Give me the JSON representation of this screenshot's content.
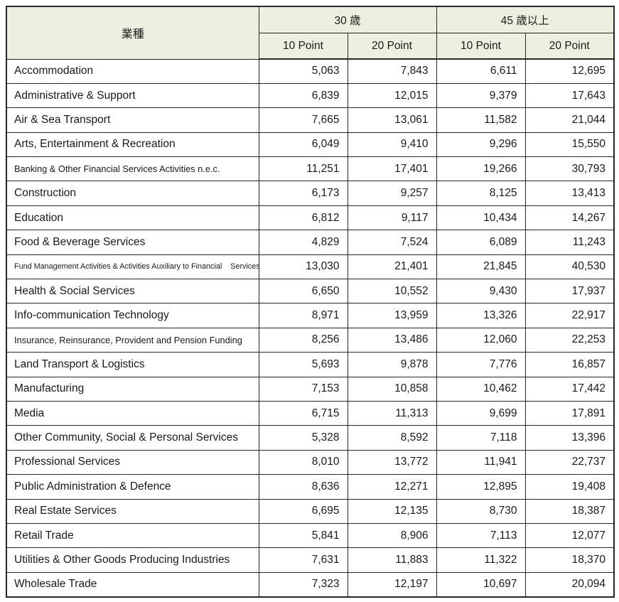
{
  "header": {
    "industry_label": "業種",
    "group_30": "30 歳",
    "group_45": "45 歳以上",
    "col_10pt": "10 Point",
    "col_20pt": "20 Point"
  },
  "colors": {
    "header_bg": "#ebf1de",
    "border": "#262626",
    "text": "#1a1a1a"
  },
  "chart_data": {
    "type": "table",
    "title": "",
    "column_groups": [
      "業種",
      "30 歳",
      "45 歳以上"
    ],
    "columns": [
      "業種",
      "30歳 10 Point",
      "30歳 20 Point",
      "45歳以上 10 Point",
      "45歳以上 20 Point"
    ],
    "rows": [
      {
        "industry": "Accommodation",
        "values": [
          5063,
          7843,
          6611,
          12695
        ]
      },
      {
        "industry": "Administrative & Support",
        "values": [
          6839,
          12015,
          9379,
          17643
        ]
      },
      {
        "industry": "Air & Sea Transport",
        "values": [
          7665,
          13061,
          11582,
          21044
        ]
      },
      {
        "industry": "Arts, Entertainment & Recreation",
        "values": [
          6049,
          9410,
          9296,
          15550
        ]
      },
      {
        "industry": "Banking & Other Financial Services Activities n.e.c.",
        "values": [
          11251,
          17401,
          19266,
          30793
        ]
      },
      {
        "industry": "Construction",
        "values": [
          6173,
          9257,
          8125,
          13413
        ]
      },
      {
        "industry": "Education",
        "values": [
          6812,
          9117,
          10434,
          14267
        ]
      },
      {
        "industry": "Food & Beverage Services",
        "values": [
          4829,
          7524,
          6089,
          11243
        ]
      },
      {
        "industry": "Fund Management Activities & Activities Auxiliary to Financial    Services",
        "values": [
          13030,
          21401,
          21845,
          40530
        ]
      },
      {
        "industry": "Health & Social Services",
        "values": [
          6650,
          10552,
          9430,
          17937
        ]
      },
      {
        "industry": "Info-communication Technology",
        "values": [
          8971,
          13959,
          13326,
          22917
        ]
      },
      {
        "industry": "Insurance, Reinsurance, Provident and Pension Funding",
        "values": [
          8256,
          13486,
          12060,
          22253
        ]
      },
      {
        "industry": "Land Transport & Logistics",
        "values": [
          5693,
          9878,
          7776,
          16857
        ]
      },
      {
        "industry": "Manufacturing",
        "values": [
          7153,
          10858,
          10462,
          17442
        ]
      },
      {
        "industry": "Media",
        "values": [
          6715,
          11313,
          9699,
          17891
        ]
      },
      {
        "industry": "Other Community, Social & Personal Services",
        "values": [
          5328,
          8592,
          7118,
          13396
        ]
      },
      {
        "industry": "Professional Services",
        "values": [
          8010,
          13772,
          11941,
          22737
        ]
      },
      {
        "industry": "Public Administration & Defence",
        "values": [
          8636,
          12271,
          12895,
          19408
        ]
      },
      {
        "industry": "Real Estate Services",
        "values": [
          6695,
          12135,
          8730,
          18387
        ]
      },
      {
        "industry": "Retail Trade",
        "values": [
          5841,
          8906,
          7113,
          12077
        ]
      },
      {
        "industry": "Utilities & Other Goods Producing Industries",
        "values": [
          7631,
          11883,
          11322,
          18370
        ]
      },
      {
        "industry": "Wholesale Trade",
        "values": [
          7323,
          12197,
          10697,
          20094
        ]
      }
    ]
  }
}
